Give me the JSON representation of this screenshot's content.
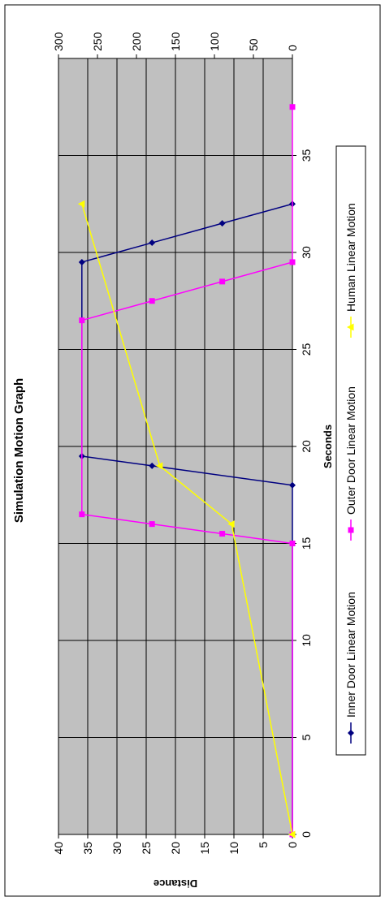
{
  "chart_data": {
    "type": "line",
    "title": "Simulation Motion Graph",
    "xlabel": "Seconds",
    "ylabel": "Distance",
    "xlim": [
      0,
      40
    ],
    "ylim_left": [
      0,
      40
    ],
    "ylim_right": [
      0,
      300
    ],
    "x_ticks": [
      "0",
      "5",
      "10",
      "15",
      "20",
      "25",
      "30",
      "35"
    ],
    "y_left_ticks": [
      "0",
      "5",
      "10",
      "15",
      "20",
      "25",
      "30",
      "35",
      "40"
    ],
    "y_right_ticks": [
      "0",
      "50",
      "100",
      "150",
      "200",
      "250",
      "300"
    ],
    "grid": true,
    "plot_background": "#c0c0c0",
    "orientation": "rotated-90-counterclockwise",
    "legend_position": "bottom",
    "series": [
      {
        "name": "Inner Door Linear Motion",
        "axis": "left",
        "color": "#000080",
        "marker": "diamond",
        "x": [
          0,
          18,
          19,
          19.5,
          29.5,
          30.5,
          31.5,
          32.5
        ],
        "y": [
          0,
          0,
          24,
          36,
          36,
          24,
          12,
          0
        ]
      },
      {
        "name": "Outer Door Linear Motion",
        "axis": "left",
        "color": "#ff00ff",
        "marker": "square",
        "x": [
          0,
          15,
          15.5,
          16,
          16.5,
          26.5,
          27.5,
          28.5,
          29.5,
          37.5
        ],
        "y": [
          0,
          0,
          12,
          24,
          36,
          36,
          24,
          12,
          0,
          0
        ]
      },
      {
        "name": "Human Linear Motion",
        "axis": "right",
        "color": "#ffff00",
        "marker": "triangle",
        "x": [
          0,
          16,
          19,
          32.5
        ],
        "y": [
          0,
          78,
          170,
          270
        ]
      }
    ]
  }
}
